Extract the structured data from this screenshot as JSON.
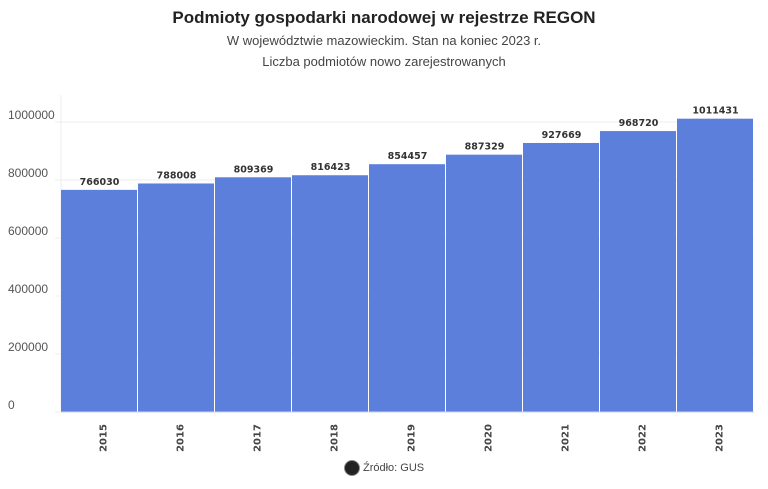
{
  "chart_data": {
    "type": "bar",
    "title": "Podmioty gospodarki narodowej w rejestrze REGON",
    "subtitle": "W województwie mazowieckim. Stan na koniec 2023 r.",
    "subtitle2": "Liczba podmiotów nowo zarejestrowanych",
    "categories": [
      "2015",
      "2016",
      "2017",
      "2018",
      "2019",
      "2020",
      "2021",
      "2022",
      "2023"
    ],
    "values": [
      766030,
      788008,
      809369,
      816423,
      854457,
      887329,
      927669,
      968720,
      1011431
    ],
    "ylim": [
      0,
      1000000
    ],
    "yticks": [
      0,
      200000,
      400000,
      600000,
      800000,
      1000000
    ],
    "grid": true,
    "bar_color": "#5b7fdb",
    "xlabel": "",
    "ylabel": ""
  },
  "source": "Źródło: GUS"
}
